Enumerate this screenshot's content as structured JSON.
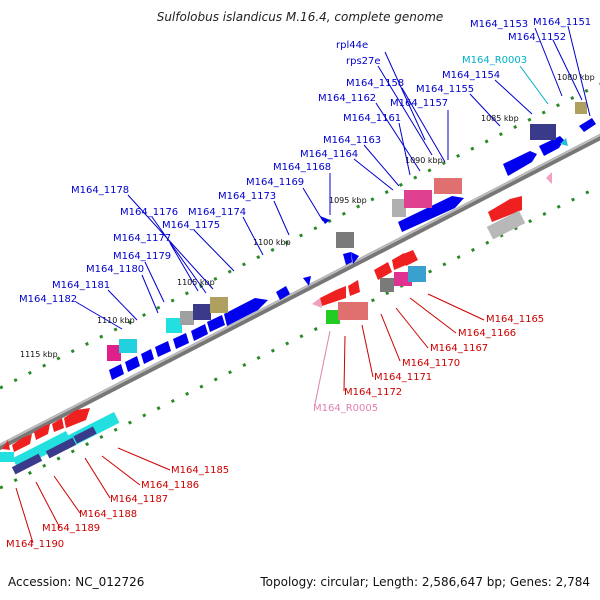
{
  "title": "Sulfolobus islandicus M.16.4, complete genome",
  "footer": {
    "accession": "Accession: NC_012726",
    "topology": "Topology: circular; Length: 2,586,647 bp; Genes: 2,784"
  },
  "colors": {
    "plus_label": "#0000cc",
    "minus_label": "#cc0000",
    "rna_label_cyan": "#00b0c8",
    "rna_label_pink": "#e080b0",
    "tick": "#228822",
    "axis": "#808080"
  },
  "kbp_ticks": [
    "1080 kbp",
    "1085 kbp",
    "1090 kbp",
    "1095 kbp",
    "1100 kbp",
    "1105 kbp",
    "1110 kbp",
    "1115 kbp"
  ],
  "gene_labels_plus": [
    "M164_1151",
    "M164_1152",
    "M164_1153",
    "M164_R0003",
    "M164_1154",
    "M164_1155",
    "rpl44e",
    "rps27e",
    "M164_1158",
    "M164_1162",
    "M164_1157",
    "M164_1161",
    "M164_1163",
    "M164_1164",
    "M164_1168",
    "M164_1169",
    "M164_1173",
    "M164_1178",
    "M164_1176",
    "M164_1174",
    "M164_1175",
    "M164_1177",
    "M164_1179",
    "M164_1180",
    "M164_1181",
    "M164_1182"
  ],
  "gene_labels_minus": [
    "M164_1165",
    "M164_1166",
    "M164_1167",
    "M164_1170",
    "M164_1171",
    "M164_1172",
    "M164_R0005",
    "M164_1185",
    "M164_1186",
    "M164_1187",
    "M164_1188",
    "M164_1189",
    "M164_1190"
  ]
}
